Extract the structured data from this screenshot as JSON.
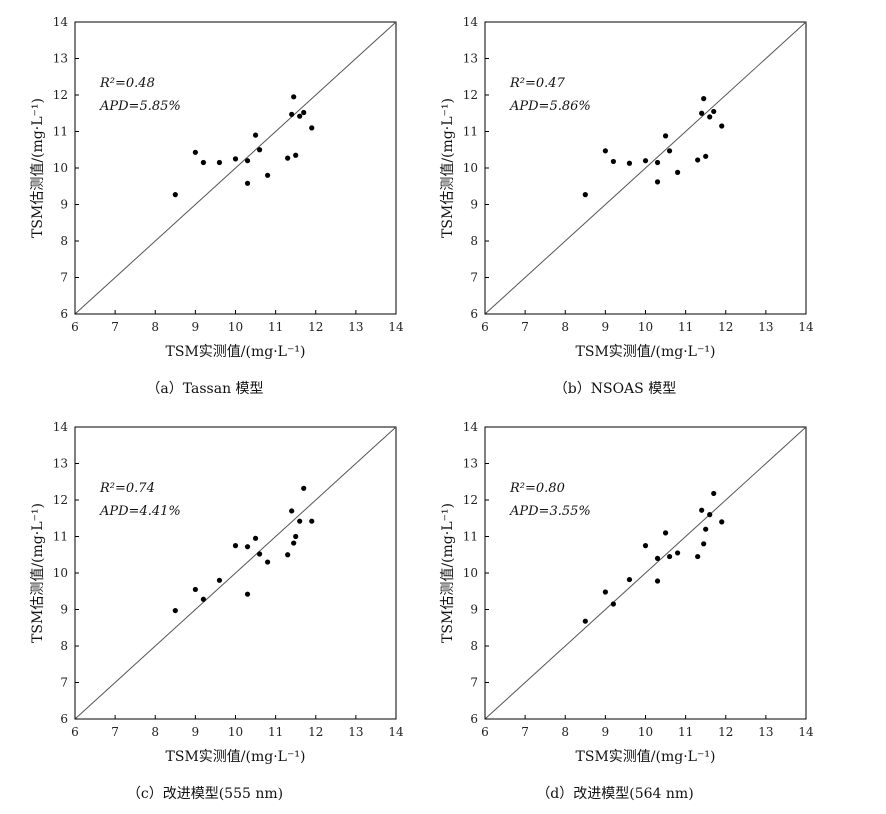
{
  "chart_data": [
    {
      "type": "scatter",
      "xlabel": "TSM实测值/(mg·L⁻¹)",
      "ylabel": "TSM估测值/(mg·L⁻¹)",
      "xlim": [
        6,
        14
      ],
      "ylim": [
        6,
        14
      ],
      "xticks": [
        "6",
        "7",
        "8",
        "9",
        "10",
        "11",
        "12",
        "13",
        "14"
      ],
      "yticks": [
        "6",
        "7",
        "8",
        "9",
        "10",
        "11",
        "12",
        "13",
        "14"
      ],
      "r2_label": "R²=0.48",
      "apd_label": "APD=5.85%",
      "reference_line": "1:1",
      "caption": "（a）Tassan 模型",
      "points": [
        [
          8.5,
          9.27
        ],
        [
          9.0,
          10.43
        ],
        [
          9.2,
          10.15
        ],
        [
          9.6,
          10.15
        ],
        [
          10.0,
          10.25
        ],
        [
          10.3,
          10.2
        ],
        [
          10.3,
          9.58
        ],
        [
          10.5,
          10.9
        ],
        [
          10.6,
          10.5
        ],
        [
          10.8,
          9.8
        ],
        [
          11.3,
          10.27
        ],
        [
          11.4,
          11.47
        ],
        [
          11.45,
          11.95
        ],
        [
          11.5,
          10.35
        ],
        [
          11.6,
          11.42
        ],
        [
          11.7,
          11.52
        ],
        [
          11.9,
          11.1
        ]
      ]
    },
    {
      "type": "scatter",
      "xlabel": "TSM实测值/(mg·L⁻¹)",
      "ylabel": "TSM估测值/(mg·L⁻¹)",
      "xlim": [
        6,
        14
      ],
      "ylim": [
        6,
        14
      ],
      "xticks": [
        "6",
        "7",
        "8",
        "9",
        "10",
        "11",
        "12",
        "13",
        "14"
      ],
      "yticks": [
        "6",
        "7",
        "8",
        "9",
        "10",
        "11",
        "12",
        "13",
        "14"
      ],
      "r2_label": "R²=0.47",
      "apd_label": "APD=5.86%",
      "reference_line": "1:1",
      "caption": "（b）NSOAS 模型",
      "points": [
        [
          8.5,
          9.27
        ],
        [
          9.0,
          10.47
        ],
        [
          9.2,
          10.18
        ],
        [
          9.6,
          10.13
        ],
        [
          10.0,
          10.2
        ],
        [
          10.3,
          10.15
        ],
        [
          10.3,
          9.62
        ],
        [
          10.5,
          10.88
        ],
        [
          10.6,
          10.47
        ],
        [
          10.8,
          9.88
        ],
        [
          11.3,
          10.22
        ],
        [
          11.4,
          11.5
        ],
        [
          11.45,
          11.9
        ],
        [
          11.5,
          10.32
        ],
        [
          11.6,
          11.4
        ],
        [
          11.7,
          11.55
        ],
        [
          11.9,
          11.15
        ]
      ]
    },
    {
      "type": "scatter",
      "xlabel": "TSM实测值/(mg·L⁻¹)",
      "ylabel": "TSM估测值/(mg·L⁻¹)",
      "xlim": [
        6,
        14
      ],
      "ylim": [
        6,
        14
      ],
      "xticks": [
        "6",
        "7",
        "8",
        "9",
        "10",
        "11",
        "12",
        "13",
        "14"
      ],
      "yticks": [
        "6",
        "7",
        "8",
        "9",
        "10",
        "11",
        "12",
        "13",
        "14"
      ],
      "r2_label": "R²=0.74",
      "apd_label": "APD=4.41%",
      "reference_line": "1:1",
      "caption": "（c）改进模型(555 nm)",
      "points": [
        [
          8.5,
          8.97
        ],
        [
          9.0,
          9.55
        ],
        [
          9.2,
          9.28
        ],
        [
          9.6,
          9.8
        ],
        [
          10.0,
          10.75
        ],
        [
          10.3,
          10.72
        ],
        [
          10.3,
          9.42
        ],
        [
          10.5,
          10.95
        ],
        [
          10.6,
          10.52
        ],
        [
          10.8,
          10.3
        ],
        [
          11.3,
          10.5
        ],
        [
          11.4,
          11.7
        ],
        [
          11.45,
          10.82
        ],
        [
          11.5,
          11.0
        ],
        [
          11.6,
          11.42
        ],
        [
          11.7,
          12.32
        ],
        [
          11.9,
          11.42
        ]
      ]
    },
    {
      "type": "scatter",
      "xlabel": "TSM实测值/(mg·L⁻¹)",
      "ylabel": "TSM估测值/(mg·L⁻¹)",
      "xlim": [
        6,
        14
      ],
      "ylim": [
        6,
        14
      ],
      "xticks": [
        "6",
        "7",
        "8",
        "9",
        "10",
        "11",
        "12",
        "13",
        "14"
      ],
      "yticks": [
        "6",
        "7",
        "8",
        "9",
        "10",
        "11",
        "12",
        "13",
        "14"
      ],
      "r2_label": "R²=0.80",
      "apd_label": "APD=3.55%",
      "reference_line": "1:1",
      "caption": "（d）改进模型(564 nm)",
      "points": [
        [
          8.5,
          8.68
        ],
        [
          9.0,
          9.48
        ],
        [
          9.2,
          9.15
        ],
        [
          9.6,
          9.82
        ],
        [
          10.0,
          10.75
        ],
        [
          10.3,
          10.4
        ],
        [
          10.3,
          9.78
        ],
        [
          10.5,
          11.1
        ],
        [
          10.6,
          10.45
        ],
        [
          10.8,
          10.55
        ],
        [
          11.3,
          10.45
        ],
        [
          11.4,
          11.72
        ],
        [
          11.45,
          10.8
        ],
        [
          11.5,
          11.2
        ],
        [
          11.6,
          11.6
        ],
        [
          11.7,
          12.18
        ],
        [
          11.9,
          11.4
        ]
      ]
    }
  ]
}
